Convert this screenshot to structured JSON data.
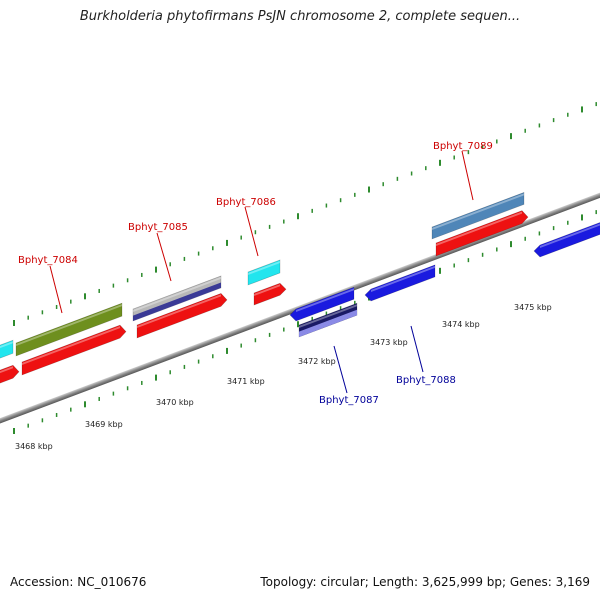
{
  "title": "Burkholderia phytofirmans PsJN chromosome 2, complete sequen...",
  "footer": {
    "accession": "Accession: NC_010676",
    "summary": "Topology: circular; Length: 3,625,999 bp; Genes: 3,169"
  },
  "colors": {
    "backbone": "#8a8a8a",
    "tick": "#2e8b2e",
    "forward_label": "#cc0000",
    "reverse_label": "#000099",
    "cds_red": "#ee1111",
    "cyan": "#22e5ee",
    "olive": "#6e8f1e",
    "blue": "#1a1adf",
    "steelblue": "#4f86b8",
    "grey": "#b8b8b8",
    "navy": "#3a3a96"
  },
  "kbp_labels": [
    "3468 kbp",
    "3469 kbp",
    "3470 kbp",
    "3471 kbp",
    "3472 kbp",
    "3473 kbp",
    "3474 kbp",
    "3475 kbp"
  ],
  "gene_labels": [
    {
      "name": "Bphyt_7084",
      "strand": "forward"
    },
    {
      "name": "Bphyt_7085",
      "strand": "forward"
    },
    {
      "name": "Bphyt_7086",
      "strand": "forward"
    },
    {
      "name": "Bphyt_7089",
      "strand": "forward"
    },
    {
      "name": "Bphyt_7087",
      "strand": "reverse"
    },
    {
      "name": "Bphyt_7088",
      "strand": "reverse"
    }
  ]
}
